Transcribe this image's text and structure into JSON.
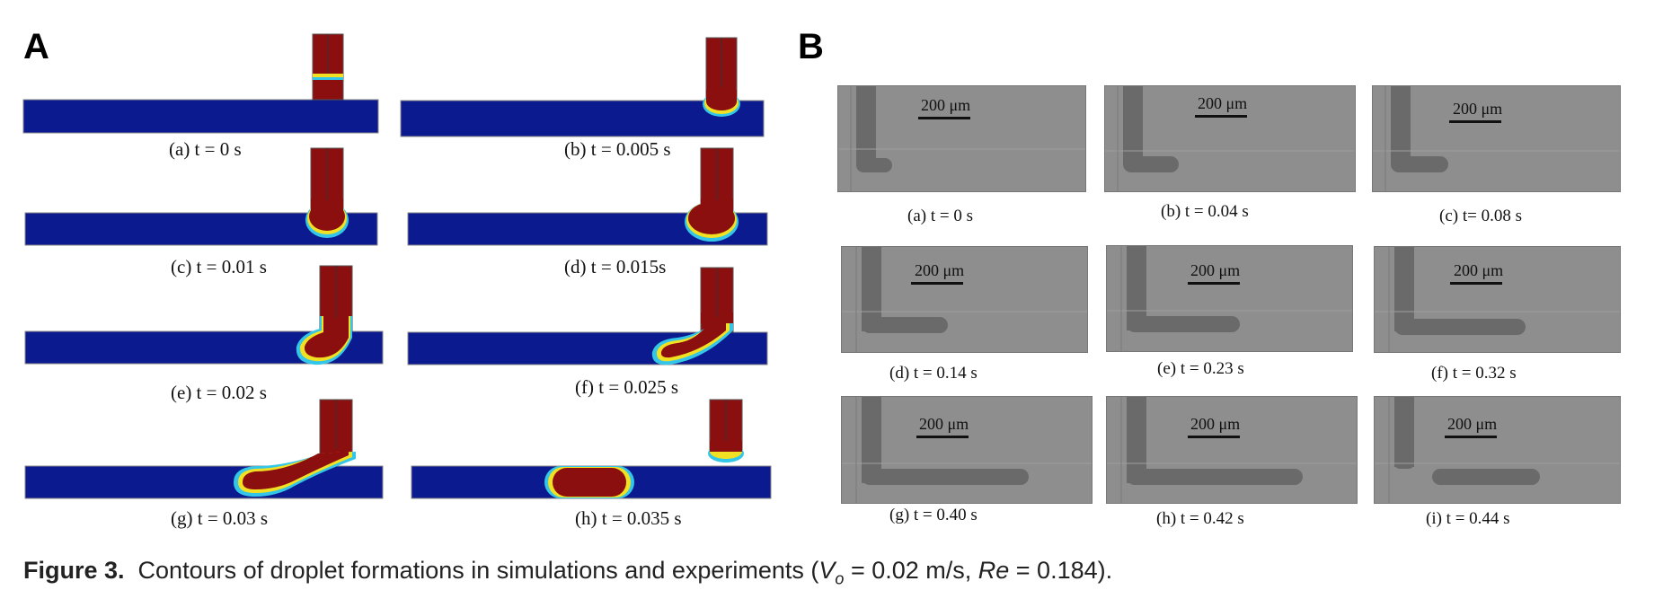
{
  "panel_a_label": "A",
  "panel_b_label": "B",
  "colors": {
    "channel_blue": "#0b1a8e",
    "droplet_red": "#8b0f0f",
    "interface_yellow": "#f2e022",
    "interface_cyan": "#33c6e8",
    "micrograph_gray": "#8a8a8a",
    "channel_dark": "#5c5c5c"
  },
  "simulation": {
    "captions": [
      "(a) t = 0 s",
      "(b) t = 0.005 s",
      "(c) t = 0.01 s",
      "(d) t = 0.015s",
      "(e) t = 0.02 s",
      "(f) t = 0.025 s",
      "(g) t = 0.03 s",
      "(h) t = 0.035 s"
    ]
  },
  "experiment": {
    "scale_bar_label": "200 μm",
    "captions": [
      "(a) t = 0 s",
      "(b) t = 0.04 s",
      "(c) t= 0.08 s",
      "(d) t = 0.14 s",
      "(e) t = 0.23 s",
      "(f) t = 0.32 s",
      "(g) t = 0.40 s",
      "(h) t = 0.42 s",
      "(i) t = 0.44 s"
    ]
  },
  "figure_caption": {
    "label": "Figure 3.",
    "text_before": "Contours of droplet formations in simulations and experiments (",
    "v_symbol": "V",
    "v_subscript": "o",
    "v_value": " = 0.02 m/s, ",
    "re_symbol": "Re",
    "re_value": " = 0.184).",
    "text_after": ""
  }
}
